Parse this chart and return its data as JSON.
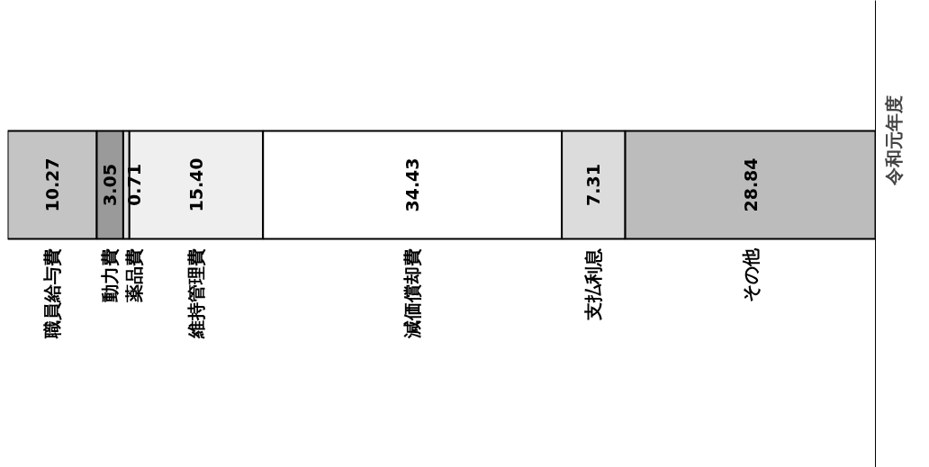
{
  "chart_data": {
    "type": "bar",
    "orientation": "horizontal",
    "stacked": true,
    "categories": [
      "令和元年度"
    ],
    "xlim": [
      0,
      100
    ],
    "grid": false,
    "series": [
      {
        "name": "職員給与費",
        "color": "#c4c4c4",
        "values": [
          10.27
        ],
        "value_labels": [
          "10.27"
        ]
      },
      {
        "name": "動力費",
        "color": "#9a9a9a",
        "values": [
          3.05
        ],
        "value_labels": [
          "3.05"
        ]
      },
      {
        "name": "薬品費",
        "color": "#e2e2e2",
        "values": [
          0.71
        ],
        "value_labels": [
          "0.71"
        ]
      },
      {
        "name": "維持管理費",
        "color": "#efefef",
        "values": [
          15.4
        ],
        "value_labels": [
          "15.40"
        ]
      },
      {
        "name": "減価償却費",
        "color": "#ffffff",
        "values": [
          34.43
        ],
        "value_labels": [
          "34.43"
        ]
      },
      {
        "name": "支払利息",
        "color": "#dcdcdc",
        "values": [
          7.31
        ],
        "value_labels": [
          "7.31"
        ]
      },
      {
        "name": "その他",
        "color": "#bcbcbc",
        "values": [
          28.84
        ],
        "value_labels": [
          "28.84"
        ]
      }
    ]
  }
}
